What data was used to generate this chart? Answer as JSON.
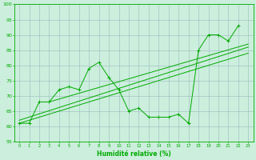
{
  "x": [
    0,
    1,
    2,
    3,
    4,
    5,
    6,
    7,
    8,
    9,
    10,
    11,
    12,
    13,
    14,
    15,
    16,
    17,
    18,
    19,
    20,
    21,
    22,
    23
  ],
  "main_data": [
    61,
    61,
    68,
    68,
    72,
    73,
    72,
    79,
    81,
    76,
    72,
    65,
    66,
    63,
    63,
    63,
    64,
    61,
    85,
    90,
    90,
    88,
    93,
    null
  ],
  "trend_lines": [
    {
      "x0": 0,
      "y0": 61,
      "x1": 23,
      "y1": 84
    },
    {
      "x0": 0,
      "y0": 62,
      "x1": 23,
      "y1": 86
    },
    {
      "x0": 3,
      "y0": 68,
      "x1": 23,
      "y1": 87
    }
  ],
  "line_color": "#00aa00",
  "bg_color": "#cceedd",
  "grid_color": "#99bbbb",
  "xlabel": "Humidité relative (%)",
  "ylim": [
    55,
    100
  ],
  "xlim": [
    -0.5,
    23.5
  ],
  "yticks": [
    55,
    60,
    65,
    70,
    75,
    80,
    85,
    90,
    95,
    100
  ],
  "xticks": [
    0,
    1,
    2,
    3,
    4,
    5,
    6,
    7,
    8,
    9,
    10,
    11,
    12,
    13,
    14,
    15,
    16,
    17,
    18,
    19,
    20,
    21,
    22,
    23
  ]
}
